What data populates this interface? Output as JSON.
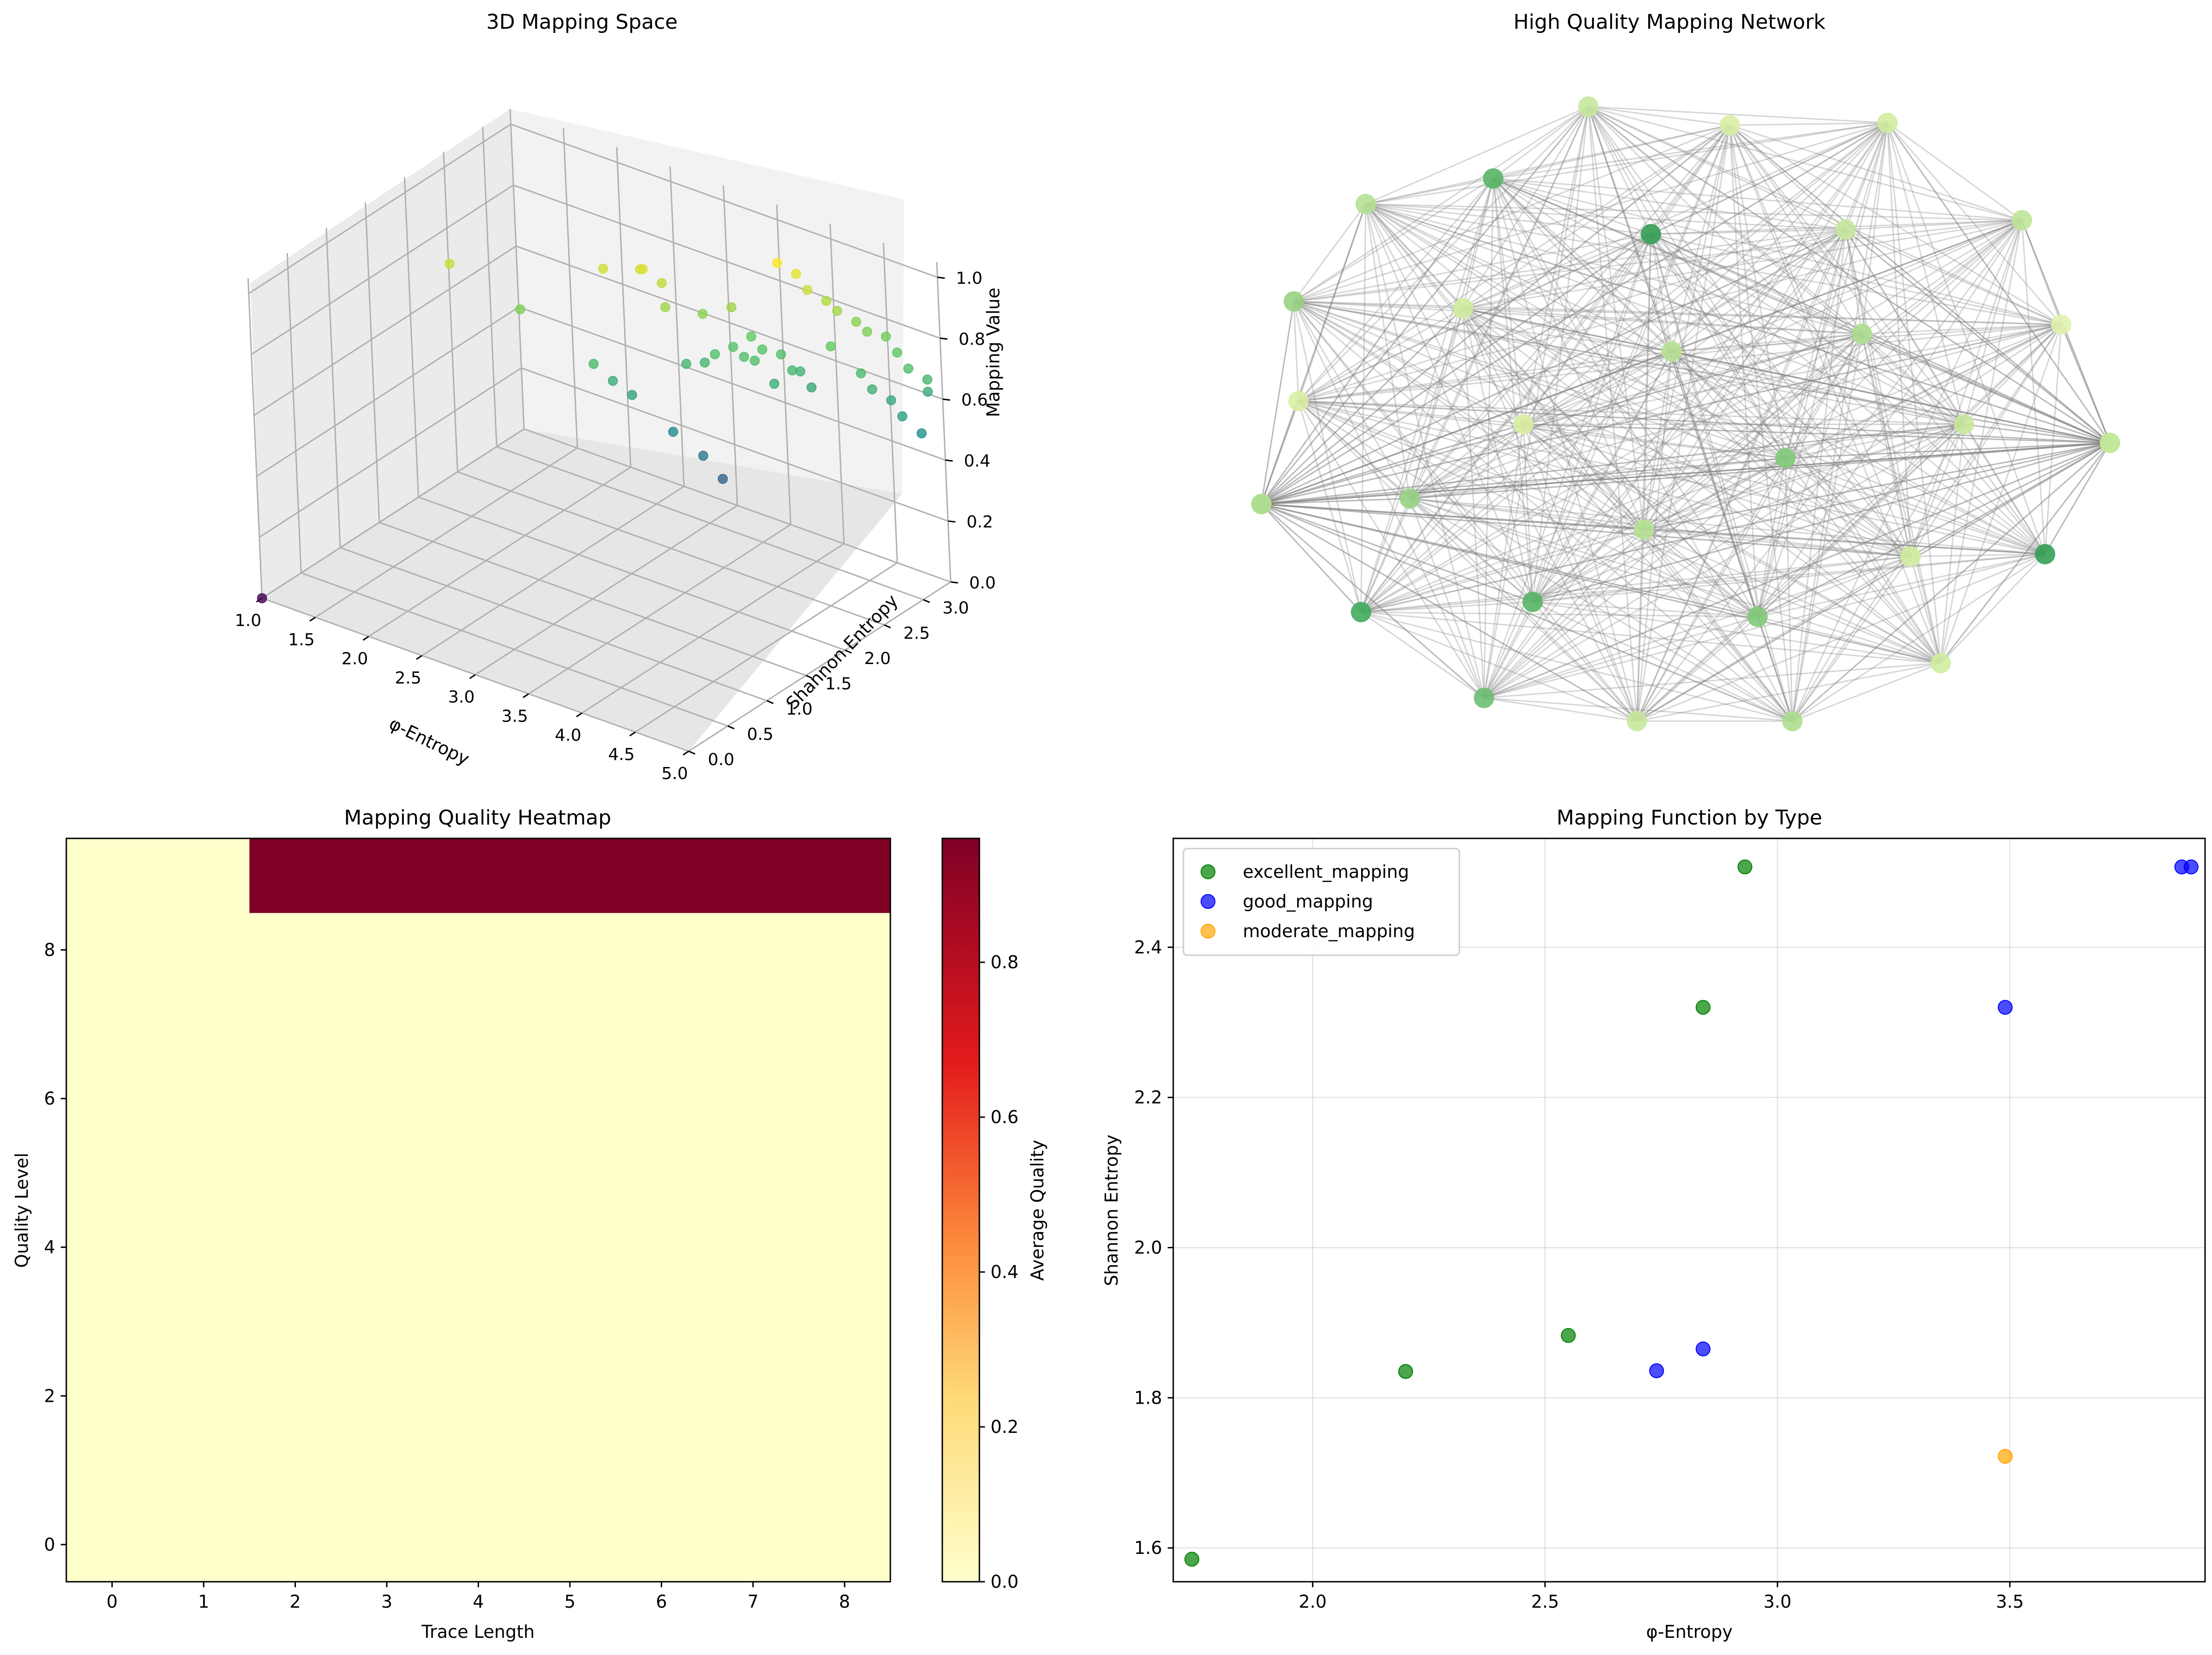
{
  "chart_data": [
    {
      "type": "scatter3d",
      "title": "3D Mapping Space",
      "xlabel": "φ-Entropy",
      "ylabel": "Shannon Entropy",
      "zlabel": "Mapping Value",
      "xticks": [
        "1.0",
        "1.5",
        "2.0",
        "2.5",
        "3.0",
        "3.5",
        "4.0",
        "4.5",
        "5.0"
      ],
      "yticks": [
        "0.0",
        "0.5",
        "1.0",
        "1.5",
        "2.0",
        "2.5",
        "3.0"
      ],
      "zticks": [
        "0.0",
        "0.2",
        "0.4",
        "0.6",
        "0.8",
        "1.0"
      ],
      "colormap": "viridis",
      "points": [
        {
          "x": 1.0,
          "y": 0.0,
          "z": 0.0
        },
        {
          "x": 1.7,
          "y": 1.6,
          "z": 0.92
        },
        {
          "x": 2.2,
          "y": 1.8,
          "z": 0.8
        },
        {
          "x": 2.8,
          "y": 1.9,
          "z": 0.68
        },
        {
          "x": 2.9,
          "y": 2.0,
          "z": 0.62
        },
        {
          "x": 3.0,
          "y": 2.1,
          "z": 0.57
        },
        {
          "x": 3.3,
          "y": 2.2,
          "z": 0.47
        },
        {
          "x": 3.5,
          "y": 2.3,
          "z": 0.4
        },
        {
          "x": 3.6,
          "y": 2.4,
          "z": 0.32
        },
        {
          "x": 2.7,
          "y": 2.2,
          "z": 0.93
        },
        {
          "x": 2.9,
          "y": 2.4,
          "z": 0.92
        },
        {
          "x": 3.0,
          "y": 2.3,
          "z": 0.95
        },
        {
          "x": 3.1,
          "y": 2.4,
          "z": 0.9
        },
        {
          "x": 3.2,
          "y": 2.3,
          "z": 0.85
        },
        {
          "x": 3.4,
          "y": 2.5,
          "z": 0.82
        },
        {
          "x": 3.6,
          "y": 2.6,
          "z": 0.85
        },
        {
          "x": 3.5,
          "y": 2.5,
          "z": 0.7
        },
        {
          "x": 3.6,
          "y": 2.6,
          "z": 0.72
        },
        {
          "x": 3.7,
          "y": 2.7,
          "z": 0.75
        },
        {
          "x": 3.8,
          "y": 2.7,
          "z": 0.72
        },
        {
          "x": 3.9,
          "y": 2.8,
          "z": 0.7
        },
        {
          "x": 4.0,
          "y": 2.8,
          "z": 0.66
        },
        {
          "x": 4.0,
          "y": 2.9,
          "z": 0.64
        },
        {
          "x": 4.1,
          "y": 2.9,
          "z": 0.6
        },
        {
          "x": 3.3,
          "y": 2.4,
          "z": 0.66
        },
        {
          "x": 3.4,
          "y": 2.5,
          "z": 0.66
        },
        {
          "x": 3.9,
          "y": 2.8,
          "z": 1.0
        },
        {
          "x": 4.0,
          "y": 2.9,
          "z": 0.96
        },
        {
          "x": 4.1,
          "y": 2.9,
          "z": 0.92
        },
        {
          "x": 4.2,
          "y": 3.0,
          "z": 0.88
        },
        {
          "x": 4.3,
          "y": 3.0,
          "z": 0.86
        },
        {
          "x": 4.4,
          "y": 3.1,
          "z": 0.82
        },
        {
          "x": 4.5,
          "y": 3.1,
          "z": 0.8
        },
        {
          "x": 4.3,
          "y": 2.9,
          "z": 0.76
        },
        {
          "x": 4.6,
          "y": 3.2,
          "z": 0.78
        },
        {
          "x": 4.7,
          "y": 3.2,
          "z": 0.74
        },
        {
          "x": 4.5,
          "y": 3.0,
          "z": 0.68
        },
        {
          "x": 4.6,
          "y": 3.0,
          "z": 0.64
        },
        {
          "x": 4.8,
          "y": 3.2,
          "z": 0.7
        },
        {
          "x": 4.9,
          "y": 3.3,
          "z": 0.66
        },
        {
          "x": 4.9,
          "y": 3.3,
          "z": 0.62
        },
        {
          "x": 4.7,
          "y": 3.1,
          "z": 0.6
        },
        {
          "x": 4.8,
          "y": 3.1,
          "z": 0.56
        },
        {
          "x": 4.9,
          "y": 3.2,
          "z": 0.5
        },
        {
          "x": 3.8,
          "y": 2.6,
          "z": 0.7
        },
        {
          "x": 3.7,
          "y": 2.6,
          "z": 0.7
        },
        {
          "x": 3.9,
          "y": 2.7,
          "z": 0.62
        }
      ]
    },
    {
      "type": "network",
      "title": "High Quality Mapping Network",
      "colormap": "YlGn",
      "node_count": 32,
      "node_values": [
        0.35,
        0.25,
        0.3,
        0.4,
        0.2,
        0.15,
        0.8,
        0.3,
        0.5,
        0.35,
        0.65,
        0.75,
        0.4,
        0.25,
        0.55,
        0.45,
        0.7,
        0.8,
        0.35,
        0.3,
        0.45,
        0.5,
        0.25,
        0.35,
        0.6,
        0.55,
        0.45,
        0.3,
        0.7,
        0.6,
        0.4,
        0.5
      ],
      "edges": "fully connected"
    },
    {
      "type": "heatmap",
      "title": "Mapping Quality Heatmap",
      "xlabel": "Trace Length",
      "ylabel": "Quality Level",
      "x": [
        0,
        1,
        2,
        3,
        4,
        5,
        6,
        7,
        8
      ],
      "y": [
        0,
        1,
        2,
        3,
        4,
        5,
        6,
        7,
        8,
        9
      ],
      "values_by_row": [
        [
          0,
          0,
          0,
          0,
          0,
          0,
          0,
          0,
          0
        ],
        [
          0,
          0,
          0,
          0,
          0,
          0,
          0,
          0,
          0
        ],
        [
          0,
          0,
          0,
          0,
          0,
          0,
          0,
          0,
          0
        ],
        [
          0,
          0,
          0,
          0,
          0,
          0,
          0,
          0,
          0
        ],
        [
          0,
          0,
          0,
          0,
          0,
          0,
          0,
          0,
          0
        ],
        [
          0,
          0,
          0,
          0,
          0,
          0,
          0,
          0,
          0
        ],
        [
          0,
          0,
          0,
          0,
          0,
          0,
          0,
          0,
          0
        ],
        [
          0,
          0,
          0,
          0,
          0,
          0,
          0,
          0,
          0
        ],
        [
          0,
          0,
          0,
          0,
          0,
          0,
          0,
          0,
          0
        ],
        [
          0,
          0,
          0.96,
          0.96,
          0.96,
          0.96,
          0.96,
          0.96,
          0.96
        ]
      ],
      "colormap": "YlOrRd",
      "colorbar_label": "Average Quality",
      "colorbar_range": [
        0,
        0.96
      ],
      "colorbar_ticks": [
        "0.0",
        "0.2",
        "0.4",
        "0.6",
        "0.8"
      ],
      "colorbar_tick_values": [
        0,
        0.2,
        0.4,
        0.6,
        0.8
      ],
      "xticks": [
        "0",
        "1",
        "2",
        "3",
        "4",
        "5",
        "6",
        "7",
        "8"
      ],
      "yticks": [
        "0",
        "2",
        "4",
        "6",
        "8"
      ],
      "ytick_values": [
        0,
        2,
        4,
        6,
        8
      ]
    },
    {
      "type": "scatter",
      "title": "Mapping Function by Type",
      "xlabel": "φ-Entropy",
      "ylabel": "Shannon Entropy",
      "xlim": [
        1.7,
        3.92
      ],
      "ylim": [
        1.555,
        2.545
      ],
      "xticks": [
        2.0,
        2.5,
        3.0,
        3.5
      ],
      "xtick_labels": [
        "2.0",
        "2.5",
        "3.0",
        "3.5"
      ],
      "yticks": [
        1.6,
        1.8,
        2.0,
        2.2,
        2.4
      ],
      "ytick_labels": [
        "1.6",
        "1.8",
        "2.0",
        "2.2",
        "2.4"
      ],
      "grid": true,
      "legend": "top-left",
      "series": [
        {
          "name": "excellent_mapping",
          "color": "#008000",
          "points": [
            [
              1.74,
              1.585
            ],
            [
              2.2,
              1.835
            ],
            [
              2.55,
              1.883
            ],
            [
              2.84,
              2.32
            ],
            [
              2.93,
              2.507
            ]
          ]
        },
        {
          "name": "good_mapping",
          "color": "#0000ff",
          "points": [
            [
              2.74,
              1.836
            ],
            [
              2.84,
              1.865
            ],
            [
              3.49,
              2.32
            ],
            [
              3.87,
              2.507
            ],
            [
              3.89,
              2.507
            ]
          ]
        },
        {
          "name": "moderate_mapping",
          "color": "#ffa500",
          "points": [
            [
              3.49,
              1.722
            ]
          ]
        }
      ]
    }
  ]
}
